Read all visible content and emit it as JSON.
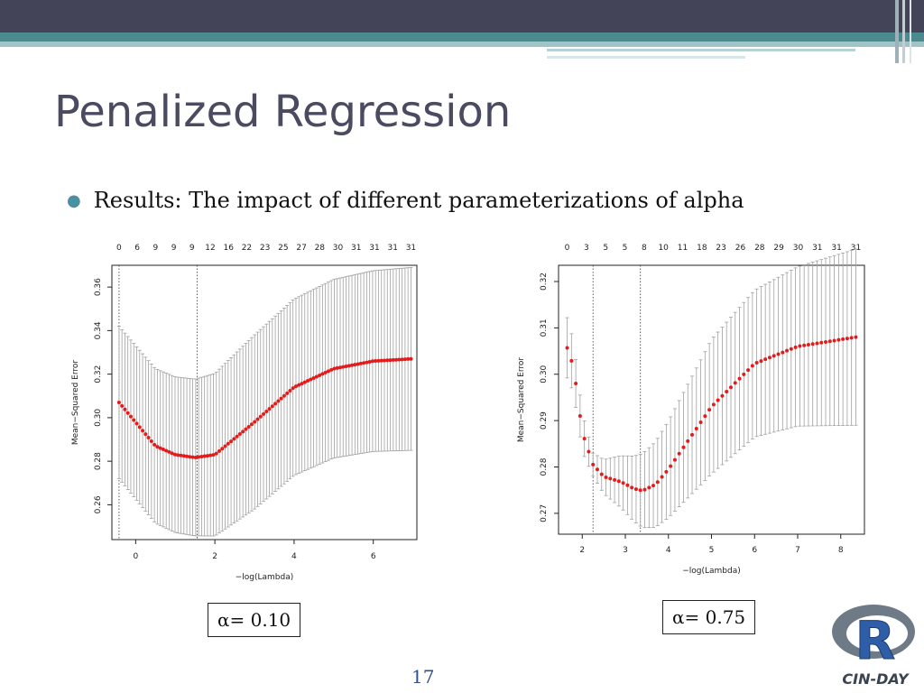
{
  "slide": {
    "title": "Penalized Regression",
    "bullet": "Results:  The impact of different parameterizations of alpha",
    "page_number": "17",
    "logo_text": "CIN-DAY",
    "logo_letter": "R"
  },
  "colors": {
    "top_bar": "#434458",
    "accent_bar": "#4b8a8f",
    "title": "#4a4a60",
    "bullet": "#4b8fa3",
    "cv_points": "#e51b1b",
    "error_bars": "#a0a0a0"
  },
  "chart_data": [
    {
      "type": "scatter",
      "title": "",
      "caption": "α= 0.10",
      "xlabel": "−log(Lambda)",
      "ylabel": "Mean−Squared Error",
      "xlim": [
        -0.6,
        7.1
      ],
      "ylim": [
        0.244,
        0.37
      ],
      "xticks": [
        0,
        2,
        4,
        6
      ],
      "yticks": [
        0.26,
        0.28,
        0.3,
        0.32,
        0.34,
        0.36
      ],
      "top_axis_labels": [
        "0",
        "6",
        "9",
        "9",
        "9",
        "12",
        "16",
        "22",
        "23",
        "25",
        "27",
        "28",
        "30",
        "31",
        "31",
        "31",
        "31"
      ],
      "vlines": [
        -0.42,
        1.55
      ],
      "x_range": [
        -0.42,
        6.95
      ],
      "n_points": 100,
      "curve_x": [
        -0.42,
        0.5,
        1.0,
        1.5,
        2.0,
        3.0,
        4.0,
        5.0,
        6.0,
        6.95
      ],
      "curve_y": [
        0.307,
        0.287,
        0.283,
        0.2817,
        0.283,
        0.298,
        0.314,
        0.3225,
        0.326,
        0.327
      ],
      "half_width_x": [
        -0.42,
        1.5,
        3.0,
        6.95
      ],
      "half_width_y": [
        0.035,
        0.036,
        0.04,
        0.042
      ],
      "grid": false
    },
    {
      "type": "scatter",
      "title": "",
      "caption": "α= 0.75",
      "xlabel": "−log(Lambda)",
      "ylabel": "Mean−Squared Error",
      "xlim": [
        1.45,
        8.55
      ],
      "ylim": [
        0.2655,
        0.3235
      ],
      "xticks": [
        2,
        3,
        4,
        5,
        6,
        7,
        8
      ],
      "yticks": [
        0.27,
        0.28,
        0.29,
        0.3,
        0.31,
        0.32
      ],
      "top_axis_labels": [
        "0",
        "3",
        "5",
        "5",
        "8",
        "10",
        "11",
        "18",
        "23",
        "26",
        "28",
        "29",
        "30",
        "31",
        "31",
        "31"
      ],
      "vlines": [
        2.25,
        3.35
      ],
      "x_range": [
        1.65,
        8.35
      ],
      "n_points": 68,
      "curve_x": [
        1.65,
        1.8,
        2.0,
        2.25,
        2.5,
        2.9,
        3.2,
        3.4,
        3.7,
        4.0,
        5.0,
        6.0,
        7.0,
        8.35
      ],
      "curve_y": [
        0.3057,
        0.3015,
        0.2875,
        0.2805,
        0.2779,
        0.2768,
        0.2753,
        0.2749,
        0.2762,
        0.2795,
        0.293,
        0.3023,
        0.306,
        0.308
      ],
      "half_width_x": [
        1.65,
        2.25,
        3.4,
        5.0,
        8.35
      ],
      "half_width_y": [
        0.0065,
        0.0025,
        0.008,
        0.0145,
        0.019
      ],
      "grid": false
    }
  ]
}
